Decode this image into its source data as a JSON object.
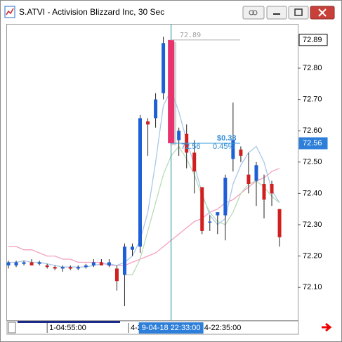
{
  "window": {
    "title": "S.ATVI - Activision Blizzard Inc, 30 Sec"
  },
  "chart_data": {
    "type": "candlestick",
    "up_color": "#1f5fd6",
    "down_color": "#d11f1f",
    "ylim": [
      71.995,
      72.939
    ],
    "yticks": [
      {
        "value": 72.1,
        "label": "72.10"
      },
      {
        "value": 72.2,
        "label": "72.20"
      },
      {
        "value": 72.3,
        "label": "72.30"
      },
      {
        "value": 72.4,
        "label": "72.40"
      },
      {
        "value": 72.5,
        "label": "72.50"
      },
      {
        "value": 72.6,
        "label": "72.60"
      },
      {
        "value": 72.7,
        "label": "72.70"
      },
      {
        "value": 72.8,
        "label": "72.80"
      }
    ],
    "xticks": [
      {
        "value": 5,
        "label": "1-04:55:00"
      },
      {
        "value": 15.5,
        "label": "4-2"
      },
      {
        "value": 25,
        "label": "4-22:35:00"
      }
    ],
    "crosshair": {
      "index": 21,
      "label": "9-04-18 22:33:00",
      "color": "#1a8a9a",
      "highlight_color": "#e8336e"
    },
    "candles": {
      "open": [
        72.17,
        72.17,
        72.175,
        72.18,
        72.175,
        72.17,
        72.165,
        72.16,
        72.165,
        72.16,
        72.165,
        72.17,
        72.18,
        72.17,
        72.16,
        72.14,
        72.22,
        72.23,
        72.63,
        72.64,
        72.72,
        72.89,
        72.57,
        72.59,
        72.53,
        72.42,
        72.31,
        72.33,
        72.33,
        72.51,
        72.54,
        72.46,
        72.44,
        72.43,
        72.43,
        72.35
      ],
      "high": [
        72.185,
        72.185,
        72.185,
        72.19,
        72.185,
        72.175,
        72.17,
        72.17,
        72.17,
        72.17,
        72.175,
        72.19,
        72.19,
        72.19,
        72.17,
        72.24,
        72.24,
        72.65,
        72.64,
        72.72,
        72.9,
        72.89,
        72.61,
        72.62,
        72.57,
        72.42,
        72.33,
        72.34,
        72.46,
        72.69,
        72.55,
        72.53,
        72.5,
        72.46,
        72.44,
        72.35
      ],
      "low": [
        72.16,
        72.165,
        72.17,
        72.17,
        72.17,
        72.16,
        72.155,
        72.15,
        72.155,
        72.155,
        72.16,
        72.165,
        72.17,
        72.165,
        72.09,
        72.04,
        72.2,
        72.21,
        72.52,
        72.61,
        72.7,
        72.56,
        72.52,
        72.48,
        72.4,
        72.27,
        72.28,
        72.27,
        72.25,
        72.47,
        72.5,
        72.4,
        72.36,
        72.32,
        72.36,
        72.23
      ],
      "close": [
        72.18,
        72.18,
        72.18,
        72.17,
        72.18,
        72.165,
        72.16,
        72.165,
        72.16,
        72.165,
        72.17,
        72.18,
        72.17,
        72.18,
        72.12,
        72.23,
        72.23,
        72.64,
        72.62,
        72.7,
        72.88,
        72.56,
        72.6,
        72.53,
        72.47,
        72.28,
        72.31,
        72.34,
        72.45,
        72.57,
        72.52,
        72.43,
        72.49,
        72.38,
        72.4,
        72.26
      ]
    },
    "series": [
      {
        "color": "#f4a0c0",
        "values": [
          72.23,
          72.23,
          72.22,
          72.22,
          72.21,
          72.2,
          72.2,
          72.19,
          72.19,
          72.18,
          72.18,
          72.18,
          72.18,
          72.17,
          72.17,
          72.17,
          72.18,
          72.19,
          72.2,
          72.21,
          72.23,
          72.25,
          72.27,
          72.29,
          72.31,
          72.32,
          72.34,
          72.35,
          72.37,
          72.38,
          72.4,
          72.42,
          72.44,
          72.45,
          72.47,
          72.48
        ]
      },
      {
        "color": "#a8c8ea",
        "values": [
          72.18,
          72.18,
          72.185,
          72.18,
          72.18,
          72.175,
          72.17,
          72.165,
          72.165,
          72.165,
          72.165,
          72.17,
          72.175,
          72.175,
          72.17,
          72.18,
          72.2,
          72.25,
          72.34,
          72.5,
          72.68,
          72.73,
          72.66,
          72.57,
          72.49,
          72.4,
          72.33,
          72.3,
          72.32,
          72.43,
          72.49,
          72.53,
          72.55,
          72.5,
          72.41,
          72.37
        ]
      },
      {
        "color": "#b8dcb8",
        "values": [
          null,
          null,
          null,
          null,
          null,
          null,
          null,
          null,
          null,
          null,
          null,
          null,
          null,
          null,
          null,
          72.14,
          72.14,
          72.19,
          72.28,
          72.37,
          72.46,
          72.52,
          72.55,
          72.51,
          72.46,
          72.39,
          72.34,
          72.31,
          72.3,
          72.34,
          72.4,
          72.43,
          72.44,
          72.42,
          72.39,
          72.37
        ]
      }
    ],
    "high_line": {
      "value": 72.89,
      "label": "72.89"
    },
    "measure": {
      "value": 72.56,
      "change": {
        "value": 0.33,
        "label": "$0.33"
      },
      "price": 72.56,
      "percent": {
        "value": 0.45,
        "label": "0.45%"
      }
    },
    "price_labels": [
      72.89,
      72.56
    ]
  }
}
